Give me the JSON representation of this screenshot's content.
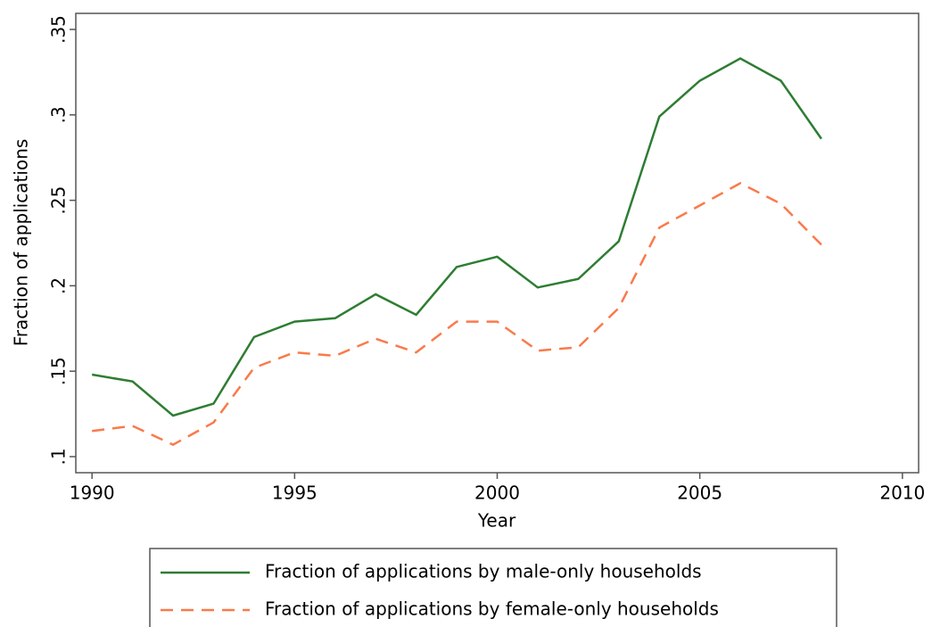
{
  "chart_data": {
    "type": "line",
    "x_label": "Year",
    "y_label": "Fraction of applications",
    "x": [
      1990,
      1991,
      1992,
      1993,
      1994,
      1995,
      1996,
      1997,
      1998,
      1999,
      2000,
      2001,
      2002,
      2003,
      2004,
      2005,
      2006,
      2007,
      2008
    ],
    "series": [
      {
        "name": "Fraction of applications by male-only households",
        "color": "#2e7d32",
        "dash": "solid",
        "values": [
          0.148,
          0.144,
          0.124,
          0.131,
          0.17,
          0.179,
          0.181,
          0.195,
          0.183,
          0.211,
          0.217,
          0.199,
          0.204,
          0.226,
          0.299,
          0.32,
          0.333,
          0.32,
          0.286
        ]
      },
      {
        "name": "Fraction of applications by female-only households",
        "color": "#fa7a4a",
        "dash": "dashed",
        "values": [
          0.115,
          0.118,
          0.107,
          0.12,
          0.152,
          0.161,
          0.159,
          0.169,
          0.161,
          0.179,
          0.179,
          0.162,
          0.164,
          0.187,
          0.234,
          0.247,
          0.26,
          0.248,
          0.224
        ]
      }
    ],
    "xlim": [
      1989.6,
      2010.4
    ],
    "xticks": [
      1990,
      1995,
      2000,
      2005,
      2010
    ],
    "ylim": [
      0.0906,
      0.3594
    ],
    "yticks": [
      {
        "value": 0.1,
        "label": ".1"
      },
      {
        "value": 0.15,
        "label": ".15"
      },
      {
        "value": 0.2,
        "label": ".2"
      },
      {
        "value": 0.25,
        "label": ".25"
      },
      {
        "value": 0.3,
        "label": ".3"
      },
      {
        "value": 0.35,
        "label": ".35"
      }
    ],
    "grid": false,
    "legend": "bottom"
  }
}
